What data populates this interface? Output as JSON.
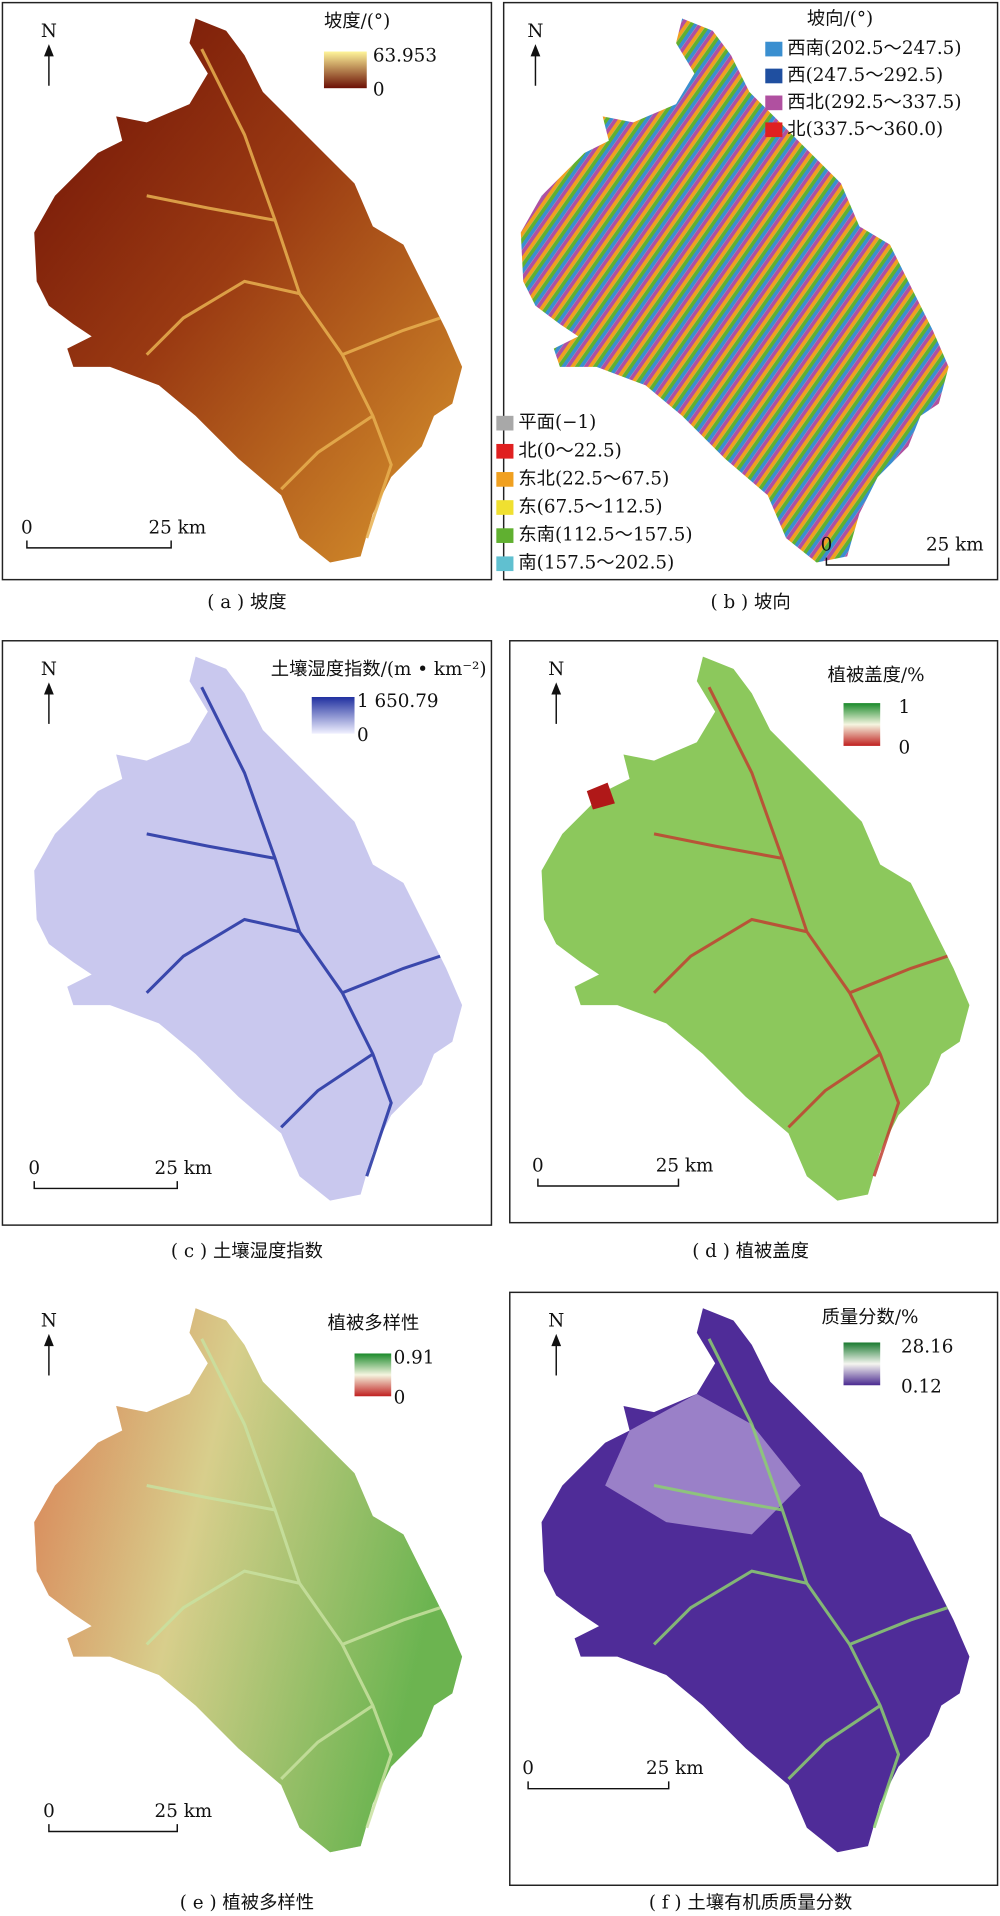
{
  "panels": [
    {
      "north": "N",
      "legend_title": "坡度/(°)",
      "legend_max": "63.953",
      "legend_min": "0",
      "scale_start": "0",
      "scale_end": "25 km",
      "caption": "( a ) 坡度"
    },
    {
      "north": "N",
      "legend_title": "坡向/(°)",
      "legend_items": [
        {
          "label": "西南(202.5～247.5)",
          "color": "#3a8fd0"
        },
        {
          "label": "西(247.5～292.5)",
          "color": "#1f4fa0"
        },
        {
          "label": "西北(292.5～337.5)",
          "color": "#b050a0"
        },
        {
          "label": "北(337.5～360.0)",
          "color": "#e02020"
        },
        {
          "label": "平面(−1)",
          "color": "#a8a8a8"
        },
        {
          "label": "北(0～22.5)",
          "color": "#e02020"
        },
        {
          "label": "东北(22.5～67.5)",
          "color": "#f0a020"
        },
        {
          "label": "东(67.5～112.5)",
          "color": "#f0e030"
        },
        {
          "label": "东南(112.5～157.5)",
          "color": "#60b030"
        },
        {
          "label": "南(157.5～202.5)",
          "color": "#60c0d0"
        }
      ],
      "scale_start": "0",
      "scale_end": "25 km",
      "caption": "( b ) 坡向"
    },
    {
      "north": "N",
      "legend_title": "土壤湿度指数/(m • km⁻²)",
      "legend_max": "1 650.79",
      "legend_min": "0",
      "scale_start": "0",
      "scale_end": "25 km",
      "caption": "( c ) 土壤湿度指数"
    },
    {
      "north": "N",
      "legend_title": "植被盖度/%",
      "legend_max": "1",
      "legend_min": "0",
      "scale_start": "0",
      "scale_end": "25 km",
      "caption": "( d ) 植被盖度"
    },
    {
      "north": "N",
      "legend_title": "植被多样性",
      "legend_max": "0.91",
      "legend_min": "0",
      "scale_start": "0",
      "scale_end": "25 km",
      "caption": "( e ) 植被多样性"
    },
    {
      "north": "N",
      "legend_title": "质量分数/%",
      "legend_max": "28.16",
      "legend_min": "0.12",
      "scale_start": "0",
      "scale_end": "25 km",
      "caption": "( f ) 土壤有机质质量分数"
    }
  ]
}
